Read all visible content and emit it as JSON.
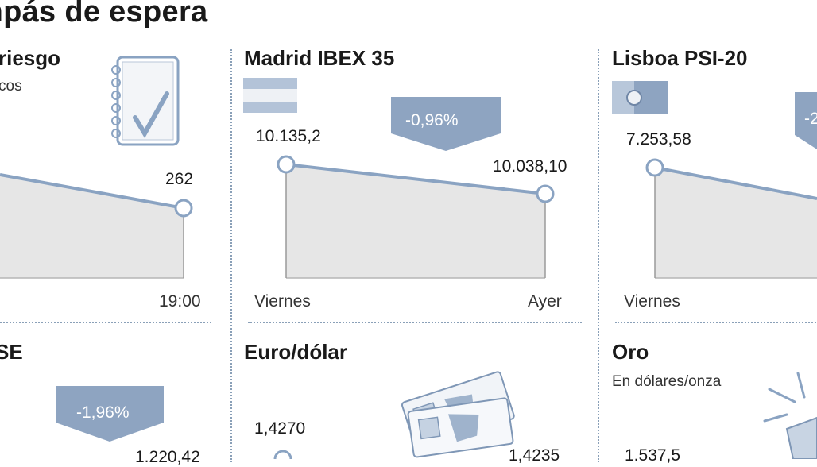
{
  "page": {
    "title": "mpás de espera"
  },
  "colors": {
    "area": "#e6e6e6",
    "line": "#8aa3c2",
    "arrow": "#8ea4c1",
    "divider": "#8aa0b8"
  },
  "chart_data": [
    {
      "id": "riesgo",
      "type": "area",
      "title": "riesgo",
      "subtitle": "cos",
      "icon": "notepad-check-icon",
      "categories": [
        "",
        "19:00"
      ],
      "series": [
        {
          "values": [
            null,
            262
          ]
        }
      ],
      "value_labels": [
        "",
        "262"
      ]
    },
    {
      "id": "ibex",
      "type": "area",
      "title": "Madrid IBEX 35",
      "icon": "spain-flag-icon",
      "categories": [
        "Viernes",
        "Ayer"
      ],
      "series": [
        {
          "values": [
            10135.2,
            10038.1
          ]
        }
      ],
      "value_labels": [
        "10.135,2",
        "10.038,10"
      ],
      "change": "-0,96%"
    },
    {
      "id": "psi",
      "type": "area",
      "title": "Lisboa PSI-20",
      "icon": "portugal-flag-icon",
      "categories": [
        "Viernes",
        ""
      ],
      "series": [
        {
          "values": [
            7253.58,
            null
          ]
        }
      ],
      "value_labels": [
        "7.253,58",
        ""
      ],
      "change": "-2"
    },
    {
      "id": "se",
      "type": "area",
      "title": "SE",
      "change": "-1,96%",
      "value_labels": [
        "",
        "1.220,42"
      ]
    },
    {
      "id": "eurodolar",
      "type": "area",
      "title": "Euro/dólar",
      "icon": "banknotes-icon",
      "value_labels": [
        "1,4270",
        "1,4235"
      ]
    },
    {
      "id": "oro",
      "type": "area",
      "title": "Oro",
      "subtitle": "En dólares/onza",
      "icon": "gold-bar-icon",
      "value_labels": [
        "1.537,5",
        ""
      ]
    }
  ]
}
